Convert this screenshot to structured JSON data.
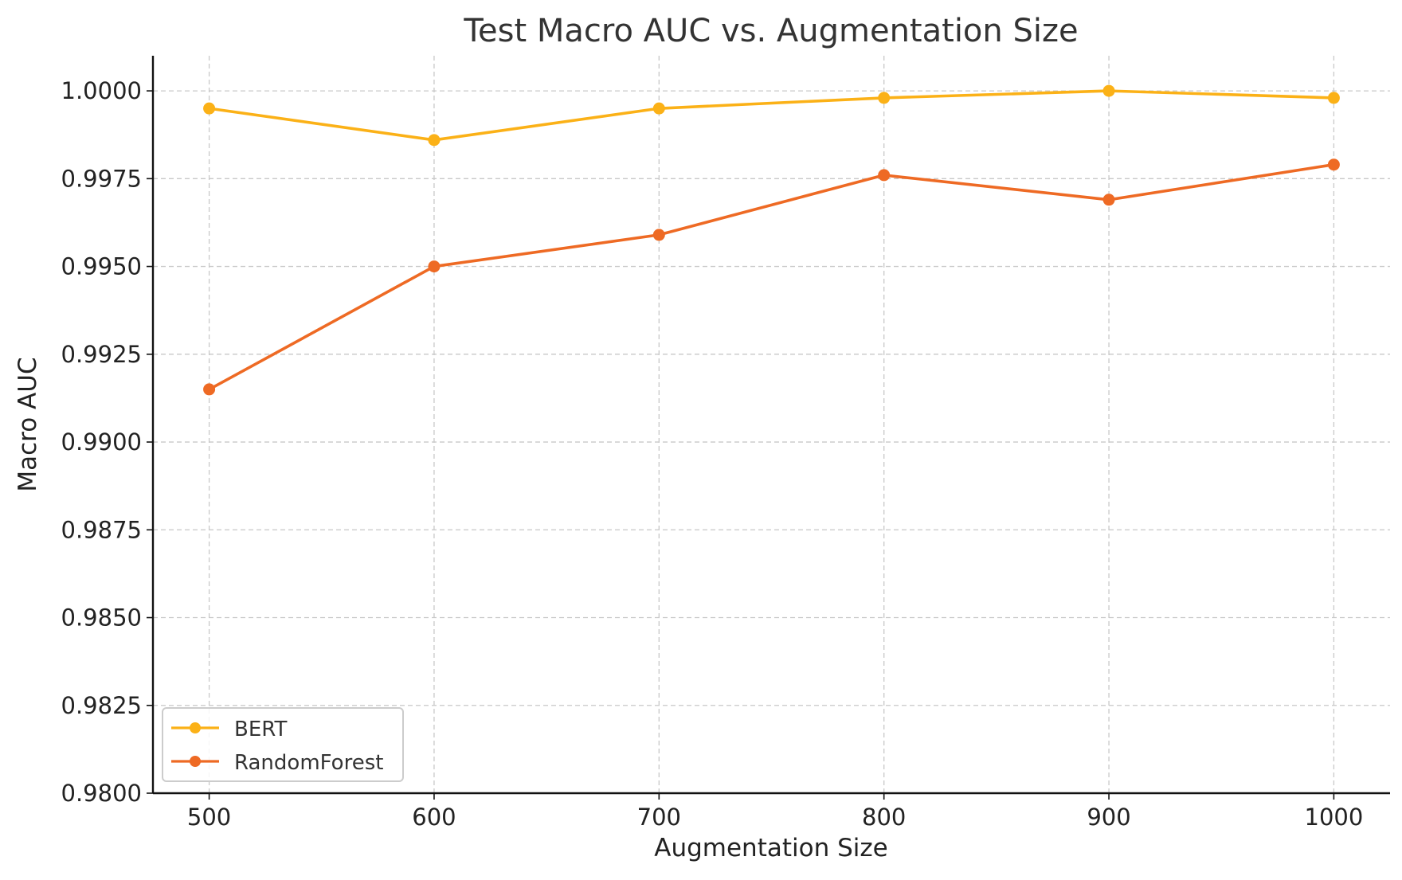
{
  "chart_data": {
    "type": "line",
    "title": "Test Macro AUC vs. Augmentation Size",
    "xlabel": "Augmentation Size",
    "ylabel": "Macro AUC",
    "x": [
      500,
      600,
      700,
      800,
      900,
      1000
    ],
    "xticks": [
      "500",
      "600",
      "700",
      "800",
      "900",
      "1000"
    ],
    "xlim": [
      475,
      1025
    ],
    "yticks": [
      "0.9800",
      "0.9825",
      "0.9850",
      "0.9875",
      "0.9900",
      "0.9925",
      "0.9950",
      "0.9975",
      "1.0000"
    ],
    "ylim": [
      0.98,
      1.001
    ],
    "grid": true,
    "legend_position": "lower-left",
    "series": [
      {
        "name": "BERT",
        "color": "#FBB117",
        "values": [
          0.9995,
          0.9986,
          0.9995,
          0.9998,
          1.0,
          0.9998
        ]
      },
      {
        "name": "RandomForest",
        "color": "#EE6A24",
        "values": [
          0.9915,
          0.995,
          0.9959,
          0.9976,
          0.9969,
          0.9979
        ]
      }
    ]
  }
}
